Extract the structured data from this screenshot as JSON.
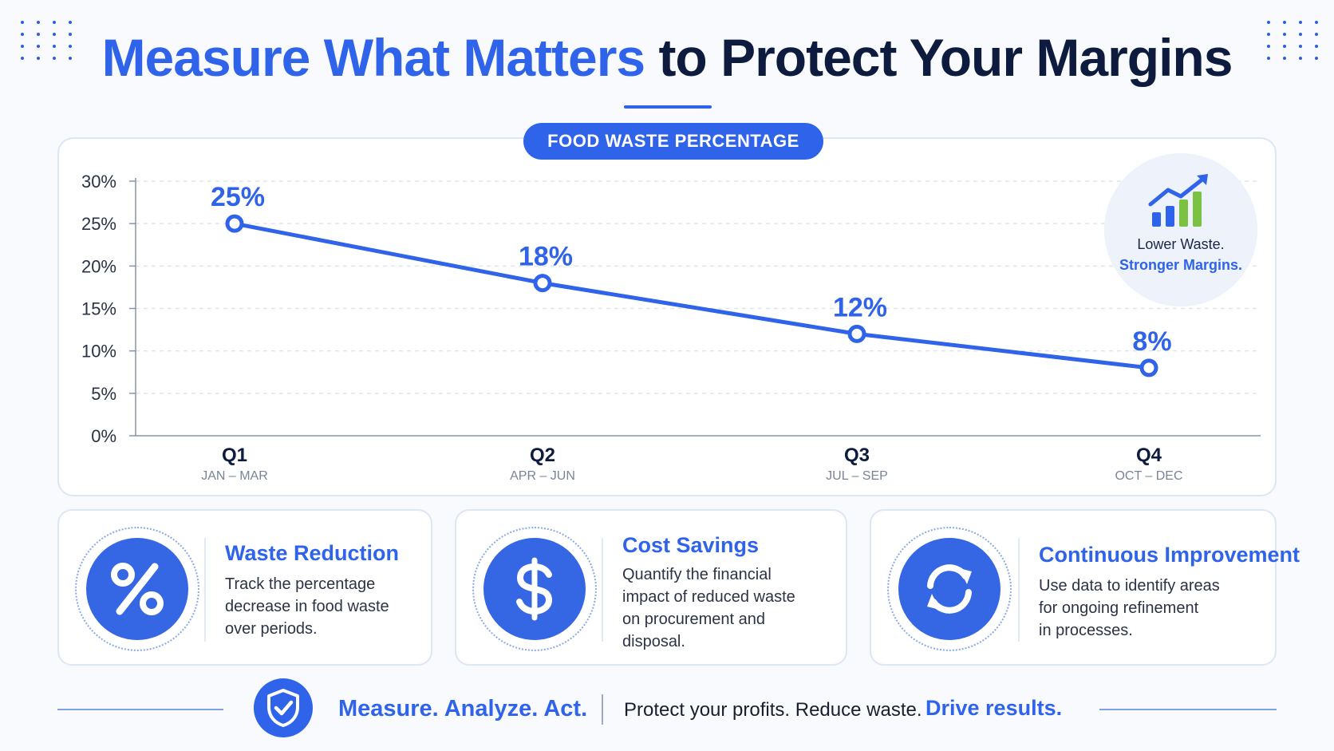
{
  "header": {
    "title_highlight": "Measure What Matters",
    "title_rest": "to Protect Your Margins"
  },
  "chart_data": {
    "type": "line",
    "title": "FOOD WASTE PERCENTAGE",
    "categories": [
      "Q1",
      "Q2",
      "Q3",
      "Q4"
    ],
    "category_sublabels": [
      "JAN – MAR",
      "APR – JUN",
      "JUL – SEP",
      "OCT – DEC"
    ],
    "series": [
      {
        "values": [
          25,
          18,
          12,
          8
        ],
        "data_labels": [
          "25%",
          "18%",
          "12%",
          "8%"
        ]
      }
    ],
    "ylim": [
      0,
      30
    ],
    "yticks": [
      0,
      5,
      10,
      15,
      20,
      25,
      30
    ],
    "ytick_labels": [
      "0%",
      "5%",
      "10%",
      "15%",
      "20%",
      "25%",
      "30%"
    ],
    "grid": true,
    "line_color": "#2f63ea"
  },
  "badge": {
    "icon": "rising-bar-chart-icon",
    "line1": "Lower Waste.",
    "line2": "Stronger Margins."
  },
  "features": [
    {
      "icon": "percent-icon",
      "title": "Waste Reduction",
      "desc": [
        "Track the percentage",
        "decrease in food waste",
        "over periods."
      ]
    },
    {
      "icon": "dollar-icon",
      "title": "Cost Savings",
      "desc": [
        "Quantify the financial",
        "impact of reduced waste",
        "on procurement and",
        "disposal."
      ]
    },
    {
      "icon": "refresh-icon",
      "title": "Continuous Improvement",
      "desc": [
        "Use data to identify areas",
        "for ongoing refinement",
        "in processes."
      ]
    }
  ],
  "footer": {
    "icon": "shield-check-icon",
    "tagline": "Measure. Analyze. Act.",
    "text": "Protect your profits. Reduce waste.",
    "cta": "Drive results."
  },
  "colors": {
    "accent": "#2f63ea",
    "dark": "#0d1b3e",
    "green": "#7cc242"
  }
}
